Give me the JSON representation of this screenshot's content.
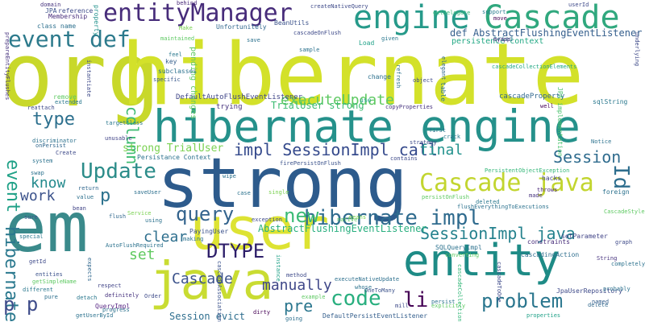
{
  "words": [
    {
      "text": "org",
      "color": "#c8d82a"
    },
    {
      "text": "hibernate",
      "color": "#d3e12a"
    },
    {
      "text": "strong",
      "color": "#2d5b8c"
    },
    {
      "text": "user",
      "color": "#dde333"
    },
    {
      "text": "em",
      "color": "#3a8a8b"
    },
    {
      "text": "java",
      "color": "#c9dc32"
    },
    {
      "text": "entity",
      "color": "#1e8b86"
    },
    {
      "text": "hibernate engine",
      "color": "#25918b"
    },
    {
      "text": "engine",
      "color": "#269a8a"
    },
    {
      "text": "Cascade",
      "color": "#30a87e"
    },
    {
      "text": "entityManager",
      "color": "#472c7a"
    },
    {
      "text": "event def",
      "color": "#2c7a8c"
    },
    {
      "text": "Cascade java",
      "color": "#c2d52f"
    },
    {
      "text": "hibernate impl",
      "color": "#2f6b8e"
    },
    {
      "text": "problem",
      "color": "#2a768e"
    },
    {
      "text": "Update",
      "color": "#2b8c89"
    },
    {
      "text": "executeUpdate",
      "color": "#5ec962"
    },
    {
      "text": "impl SessionImpl call",
      "color": "#354a8c"
    },
    {
      "text": "Session",
      "color": "#2f6c8e"
    },
    {
      "text": "column",
      "color": "#3fbc73"
    },
    {
      "text": "event",
      "color": "#1fa187"
    },
    {
      "text": "hibernate",
      "color": "#2a788e"
    },
    {
      "text": "type",
      "color": "#2d708e"
    },
    {
      "text": "Id",
      "color": "#2e6e8e"
    },
    {
      "text": "query",
      "color": "#33638d"
    },
    {
      "text": "new",
      "color": "#3bbb75"
    },
    {
      "text": "SessionImpl java",
      "color": "#26828e"
    },
    {
      "text": "DTYPE",
      "color": "#2d1e69"
    },
    {
      "text": "code",
      "color": "#29af7f"
    },
    {
      "text": "li",
      "color": "#440154"
    },
    {
      "text": "pre",
      "color": "#2a768e"
    },
    {
      "text": "p p",
      "color": "#3e4c8a"
    },
    {
      "text": "p",
      "color": "#2c728e"
    },
    {
      "text": "work",
      "color": "#3b528b"
    },
    {
      "text": "know",
      "color": "#238a8d"
    },
    {
      "text": "final",
      "color": "#21918c"
    },
    {
      "text": "clear",
      "color": "#2e6f8e"
    },
    {
      "text": "set",
      "color": "#60ca60"
    },
    {
      "text": "manually",
      "color": "#3f4788"
    },
    {
      "text": "Cascade",
      "color": "#3b528b"
    },
    {
      "text": "strong TrialUser",
      "color": "#7ad151"
    },
    {
      "text": "TrialUser strong",
      "color": "#3fbc73"
    },
    {
      "text": "AbstractFlushingEventListener",
      "color": "#29af7f"
    },
    {
      "text": "def AbstractFlushingEventListener",
      "color": "#355f8d"
    },
    {
      "text": "Session evict",
      "color": "#2e6e8e"
    },
    {
      "text": "persistence context",
      "color": "#22a884"
    },
    {
      "text": "DefaultAutoFlushEventListener",
      "color": "#404688"
    },
    {
      "text": "cascadeProperty",
      "color": "#31688e"
    },
    {
      "text": "trying",
      "color": "#46327e"
    },
    {
      "text": "pending changes",
      "color": "#5ec962"
    },
    {
      "text": "Persistance Context",
      "color": "#2c728e"
    },
    {
      "text": "PayingUser",
      "color": "#3b528b"
    },
    {
      "text": "JPA implementation",
      "color": "#4ac16d"
    },
    {
      "text": "sqlString",
      "color": "#2a788e"
    },
    {
      "text": "JpaUserRepository",
      "color": "#3e4a89"
    },
    {
      "text": "CascadingAction",
      "color": "#2e6e8e"
    },
    {
      "text": "SQLQueryImpl",
      "color": "#2c728e"
    },
    {
      "text": "constraints",
      "color": "#472c7a"
    },
    {
      "text": "setParameter",
      "color": "#414487"
    },
    {
      "text": "DefaultPersistEventListener",
      "color": "#355f8d"
    },
    {
      "text": "QueryImpl",
      "color": "#5b2a86"
    },
    {
      "text": "Membership",
      "color": "#472d7b"
    },
    {
      "text": "class name",
      "color": "#2d708e"
    },
    {
      "text": "reference",
      "color": "#3e4a89"
    },
    {
      "text": "domain",
      "color": "#46337e"
    },
    {
      "text": "JPA",
      "color": "#3b528b"
    },
    {
      "text": "property",
      "color": "#21918c"
    },
    {
      "text": "behind",
      "color": "#482878"
    },
    {
      "text": "Make",
      "color": "#7ad151"
    },
    {
      "text": "maintained",
      "color": "#5ec962"
    },
    {
      "text": "Unfortunitely",
      "color": "#31688e"
    },
    {
      "text": "BeanUtils",
      "color": "#3b528b"
    },
    {
      "text": "createNativeQuery",
      "color": "#3e4a89"
    },
    {
      "text": "getDelegate",
      "color": "#35b779"
    },
    {
      "text": "support",
      "color": "#287c8e"
    },
    {
      "text": "move",
      "color": "#440154"
    },
    {
      "text": "userId",
      "color": "#3e4a89"
    },
    {
      "text": "tried",
      "color": "#2a788e"
    },
    {
      "text": "myapp",
      "color": "#472c7a"
    },
    {
      "text": "underlying",
      "color": "#3e4a89"
    },
    {
      "text": "cascadeCollectionElements",
      "color": "#22a884"
    },
    {
      "text": "save",
      "color": "#2c728e"
    },
    {
      "text": "cascadeOnFlush",
      "color": "#3e4a89"
    },
    {
      "text": "Load",
      "color": "#1fa187"
    },
    {
      "text": "given",
      "color": "#2a788e"
    },
    {
      "text": "key",
      "color": "#355f8d"
    },
    {
      "text": "subclasses",
      "color": "#2c728e"
    },
    {
      "text": "specific",
      "color": "#38598c"
    },
    {
      "text": "change",
      "color": "#2d708e"
    },
    {
      "text": "object",
      "color": "#3e4a89"
    },
    {
      "text": "table",
      "color": "#2c728e"
    },
    {
      "text": "remove",
      "color": "#5ec962"
    },
    {
      "text": "extended",
      "color": "#2a788e"
    },
    {
      "text": "reattach",
      "color": "#3e4a89"
    },
    {
      "text": "use",
      "color": "#1f9e89"
    },
    {
      "text": "copyProperties",
      "color": "#46327e"
    },
    {
      "text": "well",
      "color": "#440154"
    },
    {
      "text": "targetClass",
      "color": "#2a788e"
    },
    {
      "text": "discriminator",
      "color": "#2c728e"
    },
    {
      "text": "onPersist",
      "color": "#31688e"
    },
    {
      "text": "unusable",
      "color": "#414487"
    },
    {
      "text": "Create",
      "color": "#3e4a89"
    },
    {
      "text": "Notice",
      "color": "#2c728e"
    },
    {
      "text": "hacks",
      "color": "#414487"
    },
    {
      "text": "foreign",
      "color": "#2c728e"
    },
    {
      "text": "contains",
      "color": "#3e4a89"
    },
    {
      "text": "firePersistOnFlush",
      "color": "#3b528b"
    },
    {
      "text": "PersistentObjectException",
      "color": "#35b779"
    },
    {
      "text": "throws",
      "color": "#482878"
    },
    {
      "text": "made",
      "color": "#46327e"
    },
    {
      "text": "deleted",
      "color": "#2a788e"
    },
    {
      "text": "saveUser",
      "color": "#2d708e"
    },
    {
      "text": "flush",
      "color": "#31688e"
    },
    {
      "text": "using",
      "color": "#2c728e"
    },
    {
      "text": "making",
      "color": "#2c728e"
    },
    {
      "text": "exception",
      "color": "#3e4a89"
    },
    {
      "text": "converting",
      "color": "#5ec962"
    },
    {
      "text": "progress",
      "color": "#2c728e"
    },
    {
      "text": "respect",
      "color": "#414487"
    },
    {
      "text": "entities",
      "color": "#3b528b"
    },
    {
      "text": "definitely",
      "color": "#46327e"
    },
    {
      "text": "detach",
      "color": "#2a788e"
    },
    {
      "text": "pure",
      "color": "#2d708e"
    },
    {
      "text": "dirty",
      "color": "#440154"
    },
    {
      "text": "mill",
      "color": "#3e4a89"
    },
    {
      "text": "properties",
      "color": "#1fa187"
    },
    {
      "text": "delete",
      "color": "#31688e"
    },
    {
      "text": "probably",
      "color": "#2c728e"
    },
    {
      "text": "named",
      "color": "#355f8d"
    },
    {
      "text": "graph",
      "color": "#3e4a89"
    },
    {
      "text": "completely",
      "color": "#2c728e"
    },
    {
      "text": "String",
      "color": "#46327e"
    },
    {
      "text": "getUserById",
      "color": "#2c728e"
    },
    {
      "text": "special",
      "color": "#2a788e"
    },
    {
      "text": "getId",
      "color": "#3e4a89"
    },
    {
      "text": "swap",
      "color": "#2c728e"
    },
    {
      "text": "return",
      "color": "#31688e"
    },
    {
      "text": "value",
      "color": "#2d708e"
    },
    {
      "text": "bean",
      "color": "#414487"
    },
    {
      "text": "sure",
      "color": "#3b528b"
    },
    {
      "text": "wipe",
      "color": "#2c728e"
    },
    {
      "text": "case",
      "color": "#2c728e"
    },
    {
      "text": "single",
      "color": "#7ad151"
    },
    {
      "text": "native",
      "color": "#5ec962"
    },
    {
      "text": "strategy",
      "color": "#3e4a89"
    },
    {
      "text": "first",
      "color": "#2c728e"
    },
    {
      "text": "crack",
      "color": "#2a788e"
    },
    {
      "text": "refresh",
      "color": "#2c728e"
    },
    {
      "text": "elegant",
      "color": "#31688e"
    },
    {
      "text": "instantiate",
      "color": "#3e4a89"
    },
    {
      "text": "prepareEntityFlushes",
      "color": "#46327e"
    },
    {
      "text": "Service",
      "color": "#7ad151"
    },
    {
      "text": "method",
      "color": "#3e4a89"
    },
    {
      "text": "whose",
      "color": "#2c728e"
    },
    {
      "text": "OneToMany",
      "color": "#3b528b"
    },
    {
      "text": "executeNativeUpdate",
      "color": "#2d708e"
    },
    {
      "text": "persistOnFlush",
      "color": "#5ec962"
    },
    {
      "text": "flushEverythingToExecutions",
      "color": "#2c728e"
    },
    {
      "text": "CascadeStyle",
      "color": "#5ec962"
    },
    {
      "text": "cascadeAssociation",
      "color": "#3b528b"
    },
    {
      "text": "cascadeCollection",
      "color": "#35b779"
    },
    {
      "text": "cascadeToOne",
      "color": "#3e4a89"
    },
    {
      "text": "AutoFlushRequired",
      "color": "#2c728e"
    },
    {
      "text": "example",
      "color": "#5ec962"
    },
    {
      "text": "instance",
      "color": "#1fa187"
    },
    {
      "text": "means",
      "color": "#7ad151"
    },
    {
      "text": "getSimpleName",
      "color": "#5ec962"
    },
    {
      "text": "different",
      "color": "#2a788e"
    },
    {
      "text": "explicitly",
      "color": "#5ec962"
    },
    {
      "text": "persist",
      "color": "#2c728e"
    },
    {
      "text": "expects",
      "color": "#31688e"
    },
    {
      "text": "going",
      "color": "#2d708e"
    },
    {
      "text": "Order",
      "color": "#3e4a89"
    },
    {
      "text": "sample",
      "color": "#2c728e"
    },
    {
      "text": "feel",
      "color": "#2a788e"
    },
    {
      "text": "system",
      "color": "#2c728e"
    }
  ]
}
